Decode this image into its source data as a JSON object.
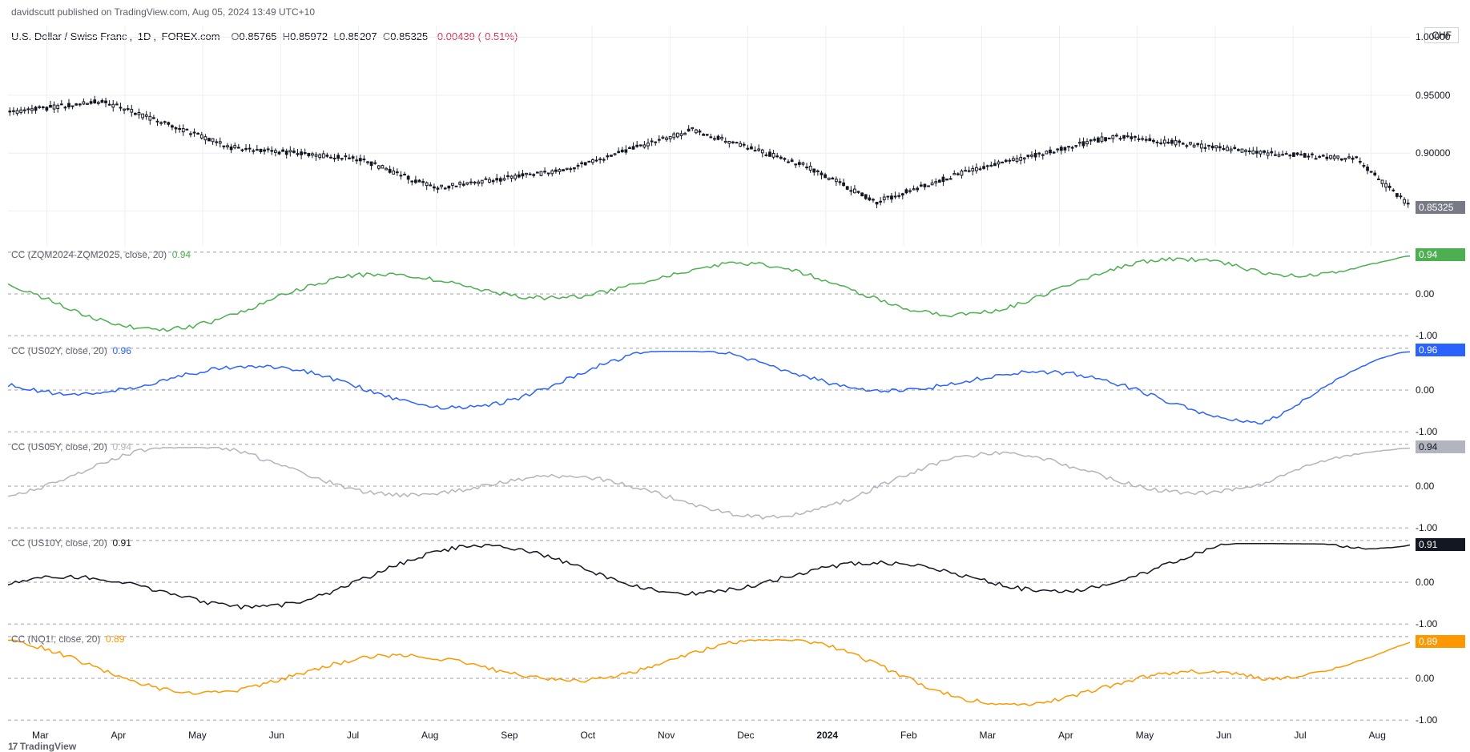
{
  "publish": {
    "author": "davidscutt",
    "text": "davidscutt published on TradingView.com, Aug 05, 2024 13:49 UTC+10"
  },
  "footer_brand": "TradingView",
  "symbol": {
    "pair": "U.S. Dollar / Swiss Franc",
    "interval": "1D",
    "provider": "FOREX.com",
    "ohlc": {
      "O": "0.85765",
      "H": "0.85972",
      "L": "0.85207",
      "C": "0.85325"
    },
    "change": "-0.00439",
    "change_pct": "(-0.51%)",
    "currency_badge": "CHF"
  },
  "colors": {
    "bg": "#ffffff",
    "grid": "#eceff2",
    "dash": "#9ca0a8",
    "text": "#131722",
    "muted": "#5d606b",
    "price_tag_bg": "#787b86",
    "candle_up": "#131722",
    "candle_down": "#131722"
  },
  "main": {
    "type": "candlestick",
    "ymin": 0.82,
    "ymax": 1.01,
    "yticks": [
      0.85325,
      0.9,
      0.95,
      1.0
    ],
    "ytick_labels": [
      "0.85325",
      "0.90000",
      "0.95000",
      "1.00000"
    ],
    "price_tag": {
      "value": 0.85325,
      "label": "0.85325",
      "bg": "#787b86",
      "fg": "#ffffff"
    },
    "n": 380
  },
  "xaxis": {
    "labels": [
      "Mar",
      "Apr",
      "May",
      "Jun",
      "Jul",
      "Aug",
      "Sep",
      "Oct",
      "Nov",
      "Dec",
      "2024",
      "Feb",
      "Mar",
      "Apr",
      "May",
      "Jun",
      "Jul",
      "Aug"
    ],
    "year_index": 10
  },
  "indicators": [
    {
      "id": "cc1",
      "label": "CC (ZQM2024-ZQM2025, close, 20)",
      "value": "0.94",
      "color": "#4caf50",
      "tag_bg": "#4caf50",
      "tag_fg": "#ffffff",
      "current": 0.94
    },
    {
      "id": "cc2",
      "label": "CC (US02Y, close, 20)",
      "value": "0.96",
      "color": "#2962ff",
      "tag_bg": "#2962ff",
      "tag_fg": "#ffffff",
      "current": 0.96
    },
    {
      "id": "cc3",
      "label": "CC (US05Y, close, 20)",
      "value": "0.94",
      "color": "#b2b5be",
      "tag_bg": "#b2b5be",
      "tag_fg": "#131722",
      "current": 0.94
    },
    {
      "id": "cc4",
      "label": "CC (US10Y, close, 20)",
      "value": "0.91",
      "color": "#131722",
      "tag_bg": "#131722",
      "tag_fg": "#ffffff",
      "current": 0.91
    },
    {
      "id": "cc5",
      "label": "CC (NQ1!, close, 20)",
      "value": "0.89",
      "color": "#ff9800",
      "tag_bg": "#ff9800",
      "tag_fg": "#ffffff",
      "current": 0.89
    }
  ],
  "indicator_axis": {
    "ymin": -1.15,
    "ymax": 1.15,
    "ticks": [
      -1.0,
      0.0
    ],
    "tick_dash": [
      1.0,
      -1.0
    ]
  }
}
